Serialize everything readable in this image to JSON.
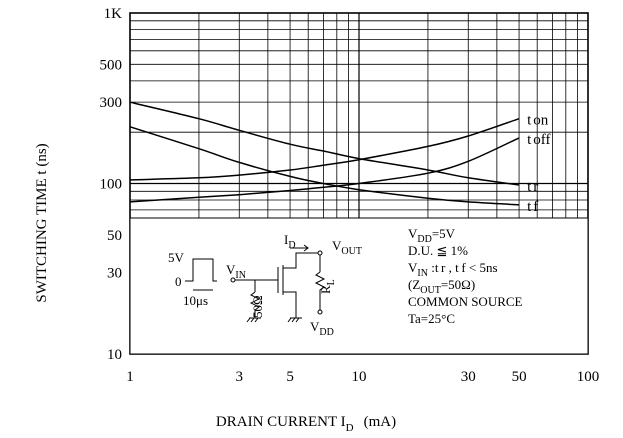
{
  "chart_data": {
    "type": "line",
    "xlabel": "DRAIN CURRENT I",
    "xlabel_sub": "D",
    "xlabel_unit": "(mA)",
    "ylabel": "SWITCHING TIME t  (ns)",
    "x_scale": "log",
    "y_scale": "log",
    "xlim": [
      1,
      100
    ],
    "ylim": [
      10,
      1000
    ],
    "x_ticks": [
      "1",
      "3",
      "5",
      "10",
      "30",
      "50",
      "100"
    ],
    "y_ticks": [
      "1K",
      "500",
      "300",
      "100",
      "50",
      "30",
      "10"
    ],
    "grid": true,
    "series": [
      {
        "name": "t on",
        "main": "t",
        "sub": "on",
        "x": [
          1,
          2,
          3,
          5,
          7,
          10,
          20,
          30,
          50
        ],
        "y": [
          105,
          108,
          112,
          120,
          128,
          138,
          165,
          190,
          240
        ]
      },
      {
        "name": "t r",
        "main": "t",
        "sub": "r",
        "x": [
          1,
          2,
          3,
          5,
          7,
          10,
          20,
          30,
          50
        ],
        "y": [
          300,
          240,
          205,
          170,
          155,
          140,
          120,
          108,
          98
        ]
      },
      {
        "name": "t off",
        "main": "t",
        "sub": "off",
        "x": [
          1,
          2,
          3,
          5,
          7,
          10,
          20,
          30,
          50
        ],
        "y": [
          78,
          83,
          86,
          91,
          95,
          100,
          115,
          135,
          185
        ]
      },
      {
        "name": "t f",
        "main": "t",
        "sub": "f",
        "x": [
          1,
          2,
          3,
          5,
          7,
          10,
          20,
          30,
          50
        ],
        "y": [
          215,
          160,
          133,
          110,
          100,
          92,
          82,
          78,
          75
        ]
      }
    ],
    "conditions": [
      {
        "main": "V",
        "sub": "DD",
        "rest": "=5V"
      },
      {
        "main": "D.U. ≦ 1%",
        "sub": "",
        "rest": ""
      },
      {
        "main": "V",
        "sub": "IN",
        "rest": " :t r , t f < 5ns"
      },
      {
        "main": "  (Z",
        "sub": "OUT",
        "rest": "=50Ω)"
      },
      {
        "main": "COMMON SOURCE",
        "sub": "",
        "rest": ""
      },
      {
        "main": "Ta=25°C",
        "sub": "",
        "rest": ""
      }
    ],
    "circuit": {
      "pulse_high": "5V",
      "pulse_low": "0",
      "pulse_width": "10μs",
      "vin": "V",
      "vin_sub": "IN",
      "id": "I",
      "id_sub": "D",
      "vout": "V",
      "vout_sub": "OUT",
      "rl": "R",
      "rl_sub": "L",
      "vdd": "V",
      "vdd_sub": "DD",
      "gate_res": "50Ω"
    }
  }
}
